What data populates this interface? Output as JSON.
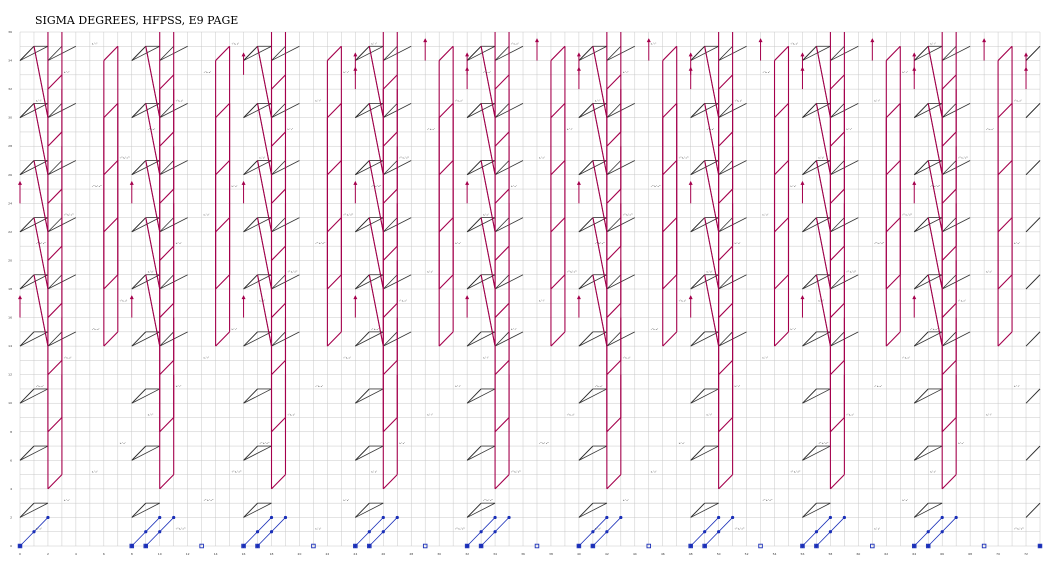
{
  "chart_data": {
    "type": "scatter",
    "title": "SIGMA DEGREES, HFPSS, E9 PAGE",
    "xlabel": "",
    "ylabel": "",
    "xlim": [
      0,
      73
    ],
    "ylim": [
      0,
      36
    ],
    "grid": true,
    "x_ticks": [
      0,
      2,
      4,
      6,
      8,
      10,
      12,
      14,
      16,
      18,
      20,
      22,
      24,
      26,
      28,
      30,
      32,
      34,
      36,
      38,
      40,
      42,
      44,
      46,
      48,
      50,
      52,
      54,
      56,
      58,
      60,
      62,
      64,
      66,
      68,
      70,
      72
    ],
    "y_ticks": [
      0,
      2,
      4,
      6,
      8,
      10,
      12,
      14,
      16,
      18,
      20,
      22,
      24,
      26,
      28,
      30,
      32,
      34,
      36
    ],
    "period": {
      "dx": 8,
      "dy": 4
    },
    "motif": {
      "black_edges": [
        [
          [
            0,
            2
          ],
          [
            1,
            3
          ]
        ],
        [
          [
            1,
            3
          ],
          [
            2,
            3
          ]
        ],
        [
          [
            8,
            2
          ],
          [
            9,
            3
          ]
        ],
        [
          [
            8,
            2
          ],
          [
            10,
            3
          ]
        ],
        [
          [
            0,
            26
          ],
          [
            1,
            27
          ]
        ],
        [
          [
            1,
            27
          ],
          [
            2,
            22
          ]
        ],
        [
          [
            2,
            22
          ],
          [
            3,
            23
          ]
        ],
        [
          [
            2,
            22
          ],
          [
            4,
            23
          ]
        ]
      ],
      "red_edges": [
        [
          [
            1,
            27
          ],
          [
            2,
            22
          ]
        ],
        [
          [
            2,
            20
          ],
          [
            2,
            12
          ]
        ],
        [
          [
            2,
            12
          ],
          [
            3,
            13
          ]
        ],
        [
          [
            3,
            13
          ],
          [
            3,
            20
          ]
        ],
        [
          [
            6,
            30
          ],
          [
            6,
            22
          ]
        ],
        [
          [
            6,
            22
          ],
          [
            7,
            23
          ]
        ],
        [
          [
            7,
            23
          ],
          [
            7,
            31
          ]
        ]
      ],
      "blue_points": [
        [
          0,
          0
        ],
        [
          1,
          1
        ],
        [
          2,
          2
        ],
        [
          9,
          0
        ],
        [
          10,
          1
        ],
        [
          11,
          2
        ]
      ],
      "blue_edges": [
        [
          [
            0,
            0
          ],
          [
            2,
            2
          ]
        ],
        [
          [
            9,
            0
          ],
          [
            11,
            2
          ]
        ]
      ],
      "blue_boxes": [
        [
          0,
          0
        ],
        [
          9,
          0
        ],
        [
          13,
          0
        ]
      ],
      "arrows": [
        [
          0,
          16
        ],
        [
          0,
          24
        ],
        [
          16,
          33
        ],
        [
          24,
          32
        ],
        [
          29,
          34
        ]
      ]
    },
    "label_texts": [
      "h₁² σ²",
      "τ³ h₃ σ⁴",
      "τ²⁴ h₂⁴ σ⁵²",
      "h₀² τ⁶"
    ]
  }
}
